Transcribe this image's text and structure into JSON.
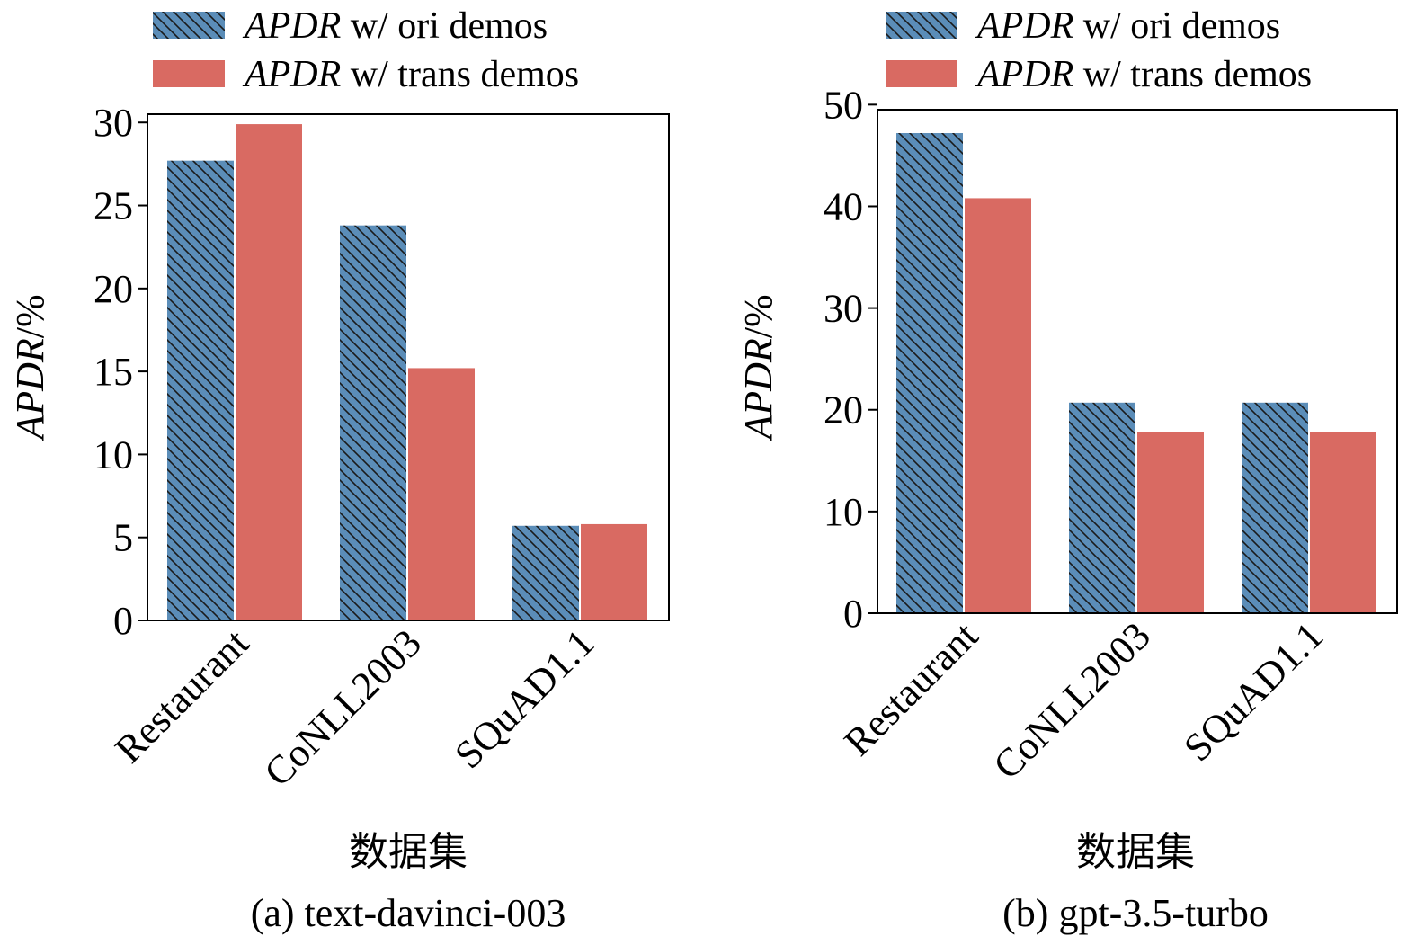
{
  "colors": {
    "ori": "#5b8db8",
    "trans": "#d96a62",
    "hatch": "#1a1a1a"
  },
  "chart_data": [
    {
      "type": "bar",
      "title": "(a)  text-davinci-003",
      "xlabel": "数据集",
      "ylabel_italic": "APDR",
      "ylabel_suffix": "/%",
      "categories": [
        "Restaurant",
        "CoNLL2003",
        "SQuAD1.1"
      ],
      "ylim": [
        0,
        30.5
      ],
      "yticks": [
        0,
        5,
        10,
        15,
        20,
        25,
        30
      ],
      "legend_location": "top",
      "series": [
        {
          "name_italic": "APDR",
          "name_suffix": " w/ ori demos",
          "key": "ori",
          "values": [
            27.7,
            23.8,
            5.7
          ]
        },
        {
          "name_italic": "APDR",
          "name_suffix": " w/ trans demos",
          "key": "trans",
          "values": [
            29.9,
            15.2,
            5.8
          ]
        }
      ]
    },
    {
      "type": "bar",
      "title": "(b)  gpt-3.5-turbo",
      "xlabel": "数据集",
      "ylabel_italic": "APDR",
      "ylabel_suffix": "/%",
      "categories": [
        "Restaurant",
        "CoNLL2003",
        "SQuAD1.1"
      ],
      "ylim": [
        0,
        49.5
      ],
      "yticks": [
        0,
        10,
        20,
        30,
        40,
        50
      ],
      "legend_location": "top",
      "series": [
        {
          "name_italic": "APDR",
          "name_suffix": " w/ ori demos",
          "key": "ori",
          "values": [
            47.2,
            20.7,
            20.7
          ]
        },
        {
          "name_italic": "APDR",
          "name_suffix": " w/ trans demos",
          "key": "trans",
          "values": [
            40.8,
            17.8,
            17.8
          ]
        }
      ]
    }
  ]
}
